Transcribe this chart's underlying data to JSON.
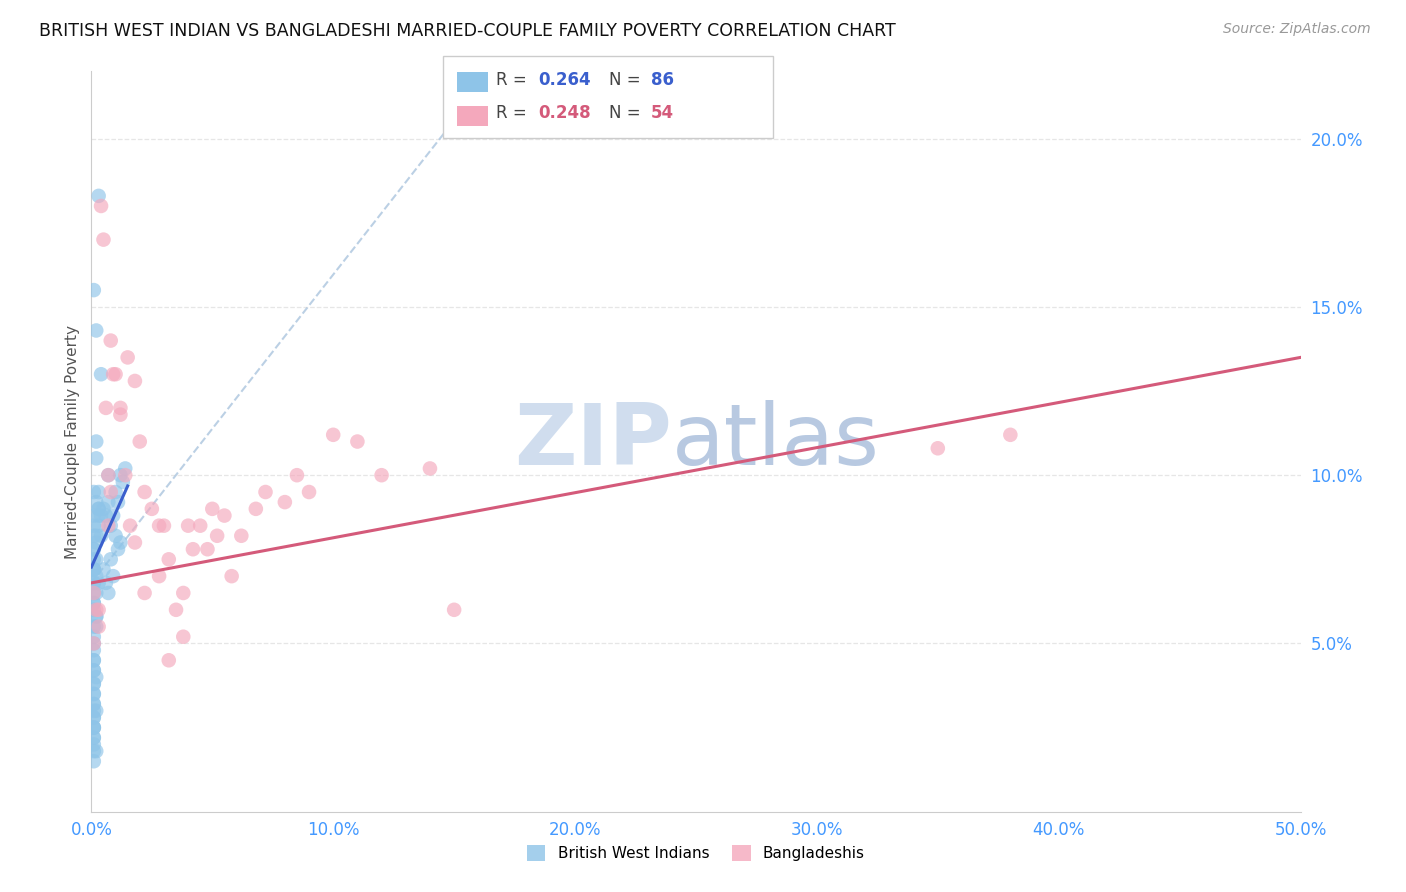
{
  "title": "BRITISH WEST INDIAN VS BANGLADESHI MARRIED-COUPLE FAMILY POVERTY CORRELATION CHART",
  "source": "Source: ZipAtlas.com",
  "ylabel": "Married-Couple Family Poverty",
  "xlim": [
    0,
    0.5
  ],
  "ylim": [
    0,
    0.22
  ],
  "xticks": [
    0.0,
    0.1,
    0.2,
    0.3,
    0.4,
    0.5
  ],
  "xticklabels": [
    "0.0%",
    "10.0%",
    "20.0%",
    "30.0%",
    "40.0%",
    "50.0%"
  ],
  "yticks": [
    0.05,
    0.1,
    0.15,
    0.2
  ],
  "yticklabels": [
    "5.0%",
    "10.0%",
    "15.0%",
    "20.0%"
  ],
  "color_blue": "#8ec4e8",
  "color_pink": "#f4a8bc",
  "trendline_blue": "#3a5fcd",
  "trendline_pink": "#d45a7a",
  "trendline_dashed_color": "#b0c8e0",
  "watermark": "ZIPatlas",
  "watermark_color": "#ccddf0",
  "background_color": "#ffffff",
  "grid_color": "#e0e0e0",
  "bwi_x": [
    0.003,
    0.007,
    0.001,
    0.002,
    0.004,
    0.001,
    0.002,
    0.003,
    0.001,
    0.002,
    0.001,
    0.001,
    0.002,
    0.003,
    0.004,
    0.001,
    0.002,
    0.001,
    0.003,
    0.001,
    0.001,
    0.002,
    0.003,
    0.001,
    0.002,
    0.001,
    0.002,
    0.003,
    0.004,
    0.001,
    0.005,
    0.006,
    0.007,
    0.008,
    0.009,
    0.01,
    0.011,
    0.012,
    0.013,
    0.014,
    0.005,
    0.006,
    0.007,
    0.008,
    0.009,
    0.01,
    0.011,
    0.012,
    0.001,
    0.002,
    0.001,
    0.002,
    0.003,
    0.001,
    0.001,
    0.002,
    0.001,
    0.001,
    0.002,
    0.001,
    0.001,
    0.001,
    0.002,
    0.001,
    0.001,
    0.001,
    0.001,
    0.001,
    0.002,
    0.001,
    0.001,
    0.001,
    0.001,
    0.001,
    0.001,
    0.001,
    0.001,
    0.002,
    0.001,
    0.001,
    0.001,
    0.001,
    0.001,
    0.001,
    0.001,
    0.001
  ],
  "bwi_y": [
    0.183,
    0.1,
    0.155,
    0.143,
    0.13,
    0.095,
    0.11,
    0.09,
    0.082,
    0.105,
    0.075,
    0.088,
    0.07,
    0.085,
    0.082,
    0.078,
    0.092,
    0.072,
    0.095,
    0.085,
    0.068,
    0.08,
    0.088,
    0.065,
    0.075,
    0.078,
    0.082,
    0.09,
    0.088,
    0.072,
    0.09,
    0.088,
    0.092,
    0.085,
    0.088,
    0.095,
    0.092,
    0.1,
    0.098,
    0.102,
    0.072,
    0.068,
    0.065,
    0.075,
    0.07,
    0.082,
    0.078,
    0.08,
    0.06,
    0.058,
    0.062,
    0.065,
    0.068,
    0.055,
    0.052,
    0.058,
    0.048,
    0.05,
    0.055,
    0.045,
    0.042,
    0.038,
    0.04,
    0.035,
    0.032,
    0.028,
    0.025,
    0.022,
    0.018,
    0.015,
    0.045,
    0.042,
    0.038,
    0.032,
    0.028,
    0.022,
    0.018,
    0.03,
    0.025,
    0.02,
    0.062,
    0.068,
    0.072,
    0.035,
    0.03,
    0.025
  ],
  "bang_x": [
    0.001,
    0.002,
    0.003,
    0.001,
    0.004,
    0.005,
    0.006,
    0.007,
    0.008,
    0.003,
    0.01,
    0.012,
    0.008,
    0.007,
    0.009,
    0.015,
    0.018,
    0.012,
    0.014,
    0.016,
    0.02,
    0.022,
    0.018,
    0.025,
    0.028,
    0.022,
    0.03,
    0.032,
    0.028,
    0.035,
    0.038,
    0.032,
    0.04,
    0.042,
    0.038,
    0.045,
    0.048,
    0.05,
    0.052,
    0.055,
    0.058,
    0.062,
    0.068,
    0.072,
    0.08,
    0.085,
    0.09,
    0.1,
    0.11,
    0.12,
    0.14,
    0.15,
    0.35,
    0.38
  ],
  "bang_y": [
    0.065,
    0.06,
    0.055,
    0.05,
    0.18,
    0.17,
    0.12,
    0.1,
    0.14,
    0.06,
    0.13,
    0.12,
    0.095,
    0.085,
    0.13,
    0.135,
    0.128,
    0.118,
    0.1,
    0.085,
    0.11,
    0.095,
    0.08,
    0.09,
    0.085,
    0.065,
    0.085,
    0.075,
    0.07,
    0.06,
    0.052,
    0.045,
    0.085,
    0.078,
    0.065,
    0.085,
    0.078,
    0.09,
    0.082,
    0.088,
    0.07,
    0.082,
    0.09,
    0.095,
    0.092,
    0.1,
    0.095,
    0.112,
    0.11,
    0.1,
    0.102,
    0.06,
    0.108,
    0.112
  ],
  "bwi_trendline": [
    0.0,
    0.015,
    0.0727,
    0.0968
  ],
  "bang_trendline": [
    0.0,
    0.5,
    0.068,
    0.135
  ],
  "dash_line": [
    0.0,
    0.155,
    0.068,
    0.21
  ]
}
